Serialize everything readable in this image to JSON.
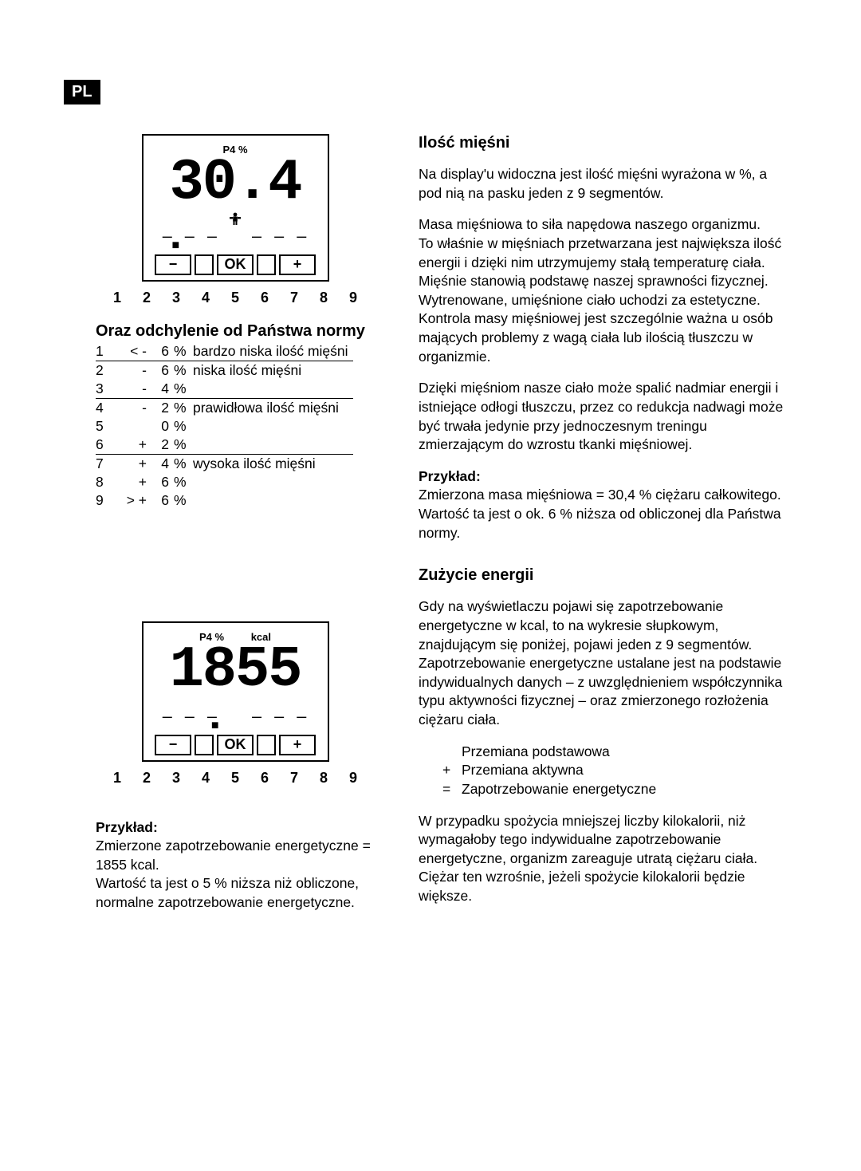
{
  "lang_badge": "PL",
  "lcd1": {
    "top_label": "P4 %",
    "value": "30.4",
    "scale": "1 2 3 4 5 6 7 8 9",
    "marker_pos_pct": 13,
    "btn_minus": "−",
    "btn_ok": "OK",
    "btn_plus": "+"
  },
  "lcd2": {
    "top_label_a": "P4 %",
    "top_label_b": "kcal",
    "value": "1855",
    "scale": "1 2 3 4 5 6 7 8 9",
    "marker_pos_pct": 36,
    "btn_minus": "−",
    "btn_ok": "OK",
    "btn_plus": "+"
  },
  "left": {
    "heading1": "Oraz odchylenie od Państwa normy",
    "table": {
      "rows": [
        {
          "n": "1",
          "sign": "< -",
          "val": "6",
          "pct": "%",
          "desc": "bardzo niska ilość mięśni",
          "hr": true
        },
        {
          "n": "2",
          "sign": "-",
          "val": "6",
          "pct": "%",
          "desc": "niska ilość mięśni",
          "hr": false
        },
        {
          "n": "3",
          "sign": "-",
          "val": "4",
          "pct": "%",
          "desc": "",
          "hr": true
        },
        {
          "n": "4",
          "sign": "-",
          "val": "2",
          "pct": "%",
          "desc": "prawidłowa ilość mięśni",
          "hr": false
        },
        {
          "n": "5",
          "sign": "",
          "val": "0",
          "pct": "%",
          "desc": "",
          "hr": false
        },
        {
          "n": "6",
          "sign": "+",
          "val": "2",
          "pct": "%",
          "desc": "",
          "hr": true
        },
        {
          "n": "7",
          "sign": "+",
          "val": "4",
          "pct": "%",
          "desc": "wysoka ilość mięśni",
          "hr": false
        },
        {
          "n": "8",
          "sign": "+",
          "val": "6",
          "pct": "%",
          "desc": "",
          "hr": false
        },
        {
          "n": "9",
          "sign": "> +",
          "val": "6",
          "pct": "%",
          "desc": "",
          "hr": false
        }
      ]
    },
    "example_label": "Przykład:",
    "example_p1": "Zmierzone zapotrzebowanie energetyczne = 1855 kcal.",
    "example_p2": "Wartość ta jest o 5 % niższa niż obliczone, normalne zapotrzebowanie energetyczne."
  },
  "right": {
    "heading1": "Ilość mięśni",
    "p1": "Na display'u widoczna jest ilość mięśni wyrażona w %, a pod nią na pasku jeden z 9 segmentów.",
    "p2": "Masa mięśniowa to siła napędowa naszego organizmu.",
    "p3": "To właśnie w mięśniach przetwarzana jest największa ilość energii i dzięki nim utrzymujemy stałą temperaturę ciała. Mięśnie stanowią podstawę naszej sprawności fizycznej. Wytrenowane, umięśnione ciało uchodzi za estetyczne. Kontrola masy mięśniowej jest szczególnie ważna u osób mających problemy z wagą ciała lub ilością tłuszczu w organizmie.",
    "p4": "Dzięki mięśniom nasze ciało może spalić nadmiar energii i istniejące odłogi tłuszczu, przez co redukcja nadwagi może być trwała jedynie przy jednoczesnym treningu zmierzającym do wzrostu tkanki mięśniowej.",
    "example_label": "Przykład:",
    "example_p1": "Zmierzona masa mięśniowa = 30,4 % ciężaru całkowitego.",
    "example_p2": "Wartość ta jest o ok. 6 % niższa od obliczonej dla Państwa normy.",
    "heading2": "Zużycie energii",
    "p5": "Gdy na wyświetlaczu pojawi się zapotrzebowanie energetyczne w kcal, to na wykresie słupkowym, znajdującym się poniżej, pojawi jeden z 9 segmentów. Zapotrzebowanie energetyczne ustalane jest na podstawie indywidualnych danych – z uwzględnieniem współczynnika typu aktywności fizycznej – oraz zmierzonego rozłożenia ciężaru ciała.",
    "eq": {
      "r1_sym": "",
      "r1_txt": "Przemiana podstawowa",
      "r2_sym": "+",
      "r2_txt": "Przemiana aktywna",
      "r3_sym": "=",
      "r3_txt": "Zapotrzebowanie energetyczne"
    },
    "p6": "W przypadku spożycia mniejszej liczby kilokalorii, niż wymagałoby tego indywidualne zapotrzebowanie energetyczne, organizm zareaguje utratą ciężaru ciała. Ciężar ten wzrośnie, jeżeli spożycie kilokalorii będzie większe."
  }
}
